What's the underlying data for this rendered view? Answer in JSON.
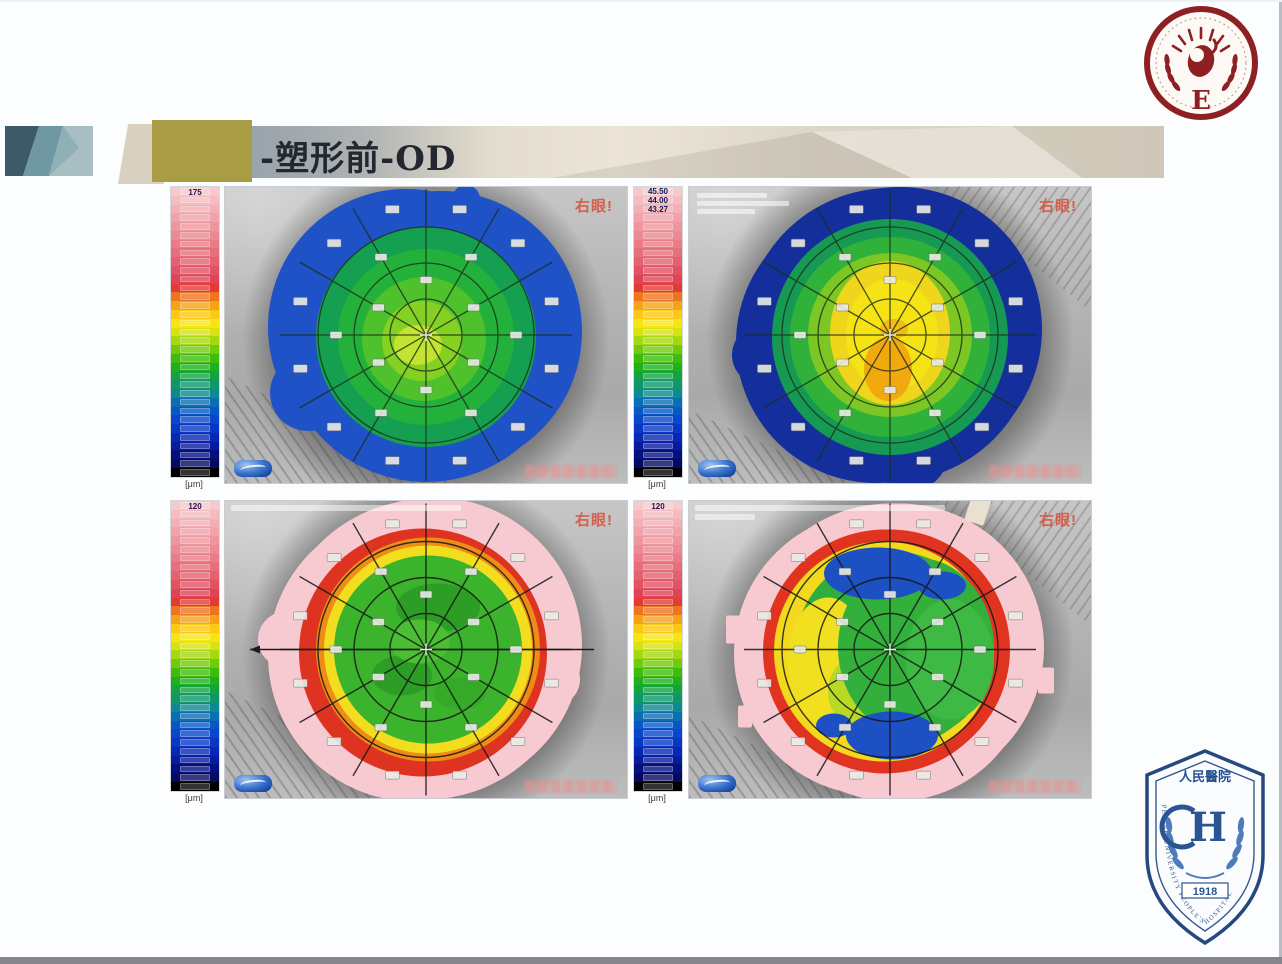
{
  "slide": {
    "title": "-塑形前-OD"
  },
  "title_band": {
    "olive_color": "#a89d44",
    "teal_facet_colors": [
      "#3c5a68",
      "#6f98a2",
      "#a9bec2",
      "#8fb0b6"
    ]
  },
  "eye_institute_logo": {
    "letter": "E",
    "ring_color": "#8e2023"
  },
  "hospital_logo": {
    "name_cn": "人民醫院",
    "name_en": "PEKING UNIVERSITY PEOPLE'S HOSPITAL",
    "year": "1918",
    "monogram": "H",
    "color": "#2b5492"
  },
  "scale_unit": "[μm]",
  "scale_colors": [
    "#f6c9cc",
    "#f4bcc0",
    "#f2afb5",
    "#f0a3aa",
    "#ee969e",
    "#ec8992",
    "#e97c86",
    "#e76f7b",
    "#e4616f",
    "#e15263",
    "#de4356",
    "#e23a35",
    "#ee7420",
    "#f6a216",
    "#fbc913",
    "#f8e414",
    "#d7e311",
    "#a6d80f",
    "#72ca0d",
    "#3fbc0b",
    "#1fb01e",
    "#13a441",
    "#0f9769",
    "#0c8a90",
    "#0a6eb5",
    "#0956c7",
    "#0846cc",
    "#0837c6",
    "#0727b6",
    "#061b9e",
    "#051080",
    "#040a61",
    "#000000"
  ],
  "maps": [
    {
      "position": "top-left",
      "eye_label": "右眼!",
      "scale_top_label": "175"
    },
    {
      "position": "top-right",
      "eye_label": "右眼!",
      "scale_top_labels": [
        "45.50",
        "44.00",
        "43.27"
      ]
    },
    {
      "position": "bottom-left",
      "eye_label": "右眼!",
      "scale_top_label": "120"
    },
    {
      "position": "bottom-right",
      "eye_label": "右眼!",
      "scale_top_label": "120"
    }
  ]
}
